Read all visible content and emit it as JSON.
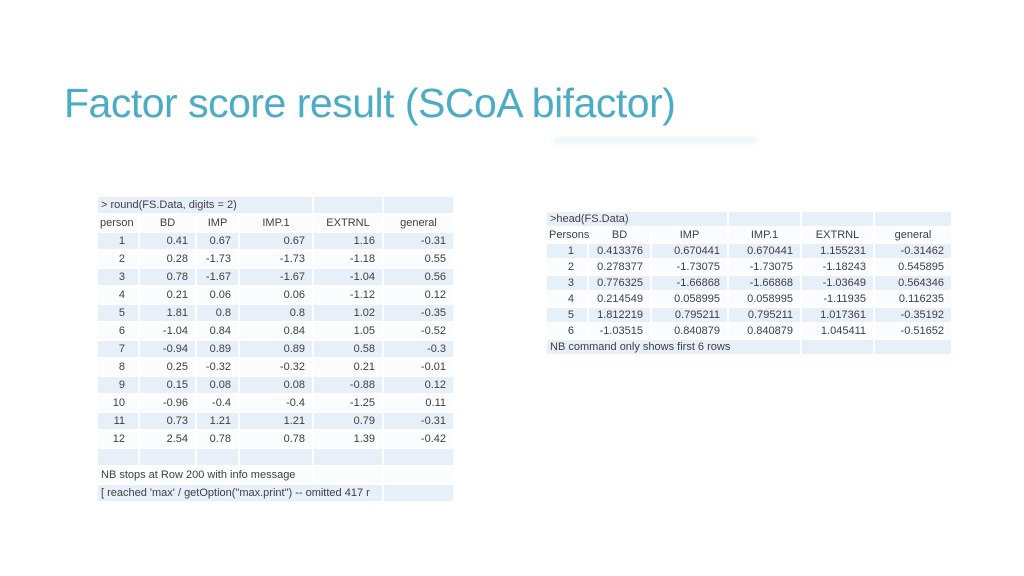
{
  "slide": {
    "title": "Factor score result (SCoA bifactor)",
    "title_color": "#4bacc6",
    "background_color": "#ffffff",
    "table_band_color": "#e7eff8",
    "text_color": "#3f3f3f"
  },
  "left_table": {
    "command": "> round(FS.Data, digits = 2)",
    "headers": [
      "person",
      "BD",
      "IMP",
      "IMP.1",
      "EXTRNL",
      "general"
    ],
    "rows": [
      [
        "1",
        "0.41",
        "0.67",
        "0.67",
        "1.16",
        "-0.31"
      ],
      [
        "2",
        "0.28",
        "-1.73",
        "-1.73",
        "-1.18",
        "0.55"
      ],
      [
        "3",
        "0.78",
        "-1.67",
        "-1.67",
        "-1.04",
        "0.56"
      ],
      [
        "4",
        "0.21",
        "0.06",
        "0.06",
        "-1.12",
        "0.12"
      ],
      [
        "5",
        "1.81",
        "0.8",
        "0.8",
        "1.02",
        "-0.35"
      ],
      [
        "6",
        "-1.04",
        "0.84",
        "0.84",
        "1.05",
        "-0.52"
      ],
      [
        "7",
        "-0.94",
        "0.89",
        "0.89",
        "0.58",
        "-0.3"
      ],
      [
        "8",
        "0.25",
        "-0.32",
        "-0.32",
        "0.21",
        "-0.01"
      ],
      [
        "9",
        "0.15",
        "0.08",
        "0.08",
        "-0.88",
        "0.12"
      ],
      [
        "10",
        "-0.96",
        "-0.4",
        "-0.4",
        "-1.25",
        "0.11"
      ],
      [
        "11",
        "0.73",
        "1.21",
        "1.21",
        "0.79",
        "-0.31"
      ],
      [
        "12",
        "2.54",
        "0.78",
        "0.78",
        "1.39",
        "-0.42"
      ]
    ],
    "notes": [
      "NB stops at Row 200 with info message",
      "[ reached 'max' / getOption(\"max.print\") -- omitted 417 r"
    ]
  },
  "right_table": {
    "command": ">head(FS.Data)",
    "headers": [
      "Persons",
      "BD",
      "IMP",
      "IMP.1",
      "EXTRNL",
      "general"
    ],
    "rows": [
      [
        "1",
        "0.413376",
        "0.670441",
        "0.670441",
        "1.155231",
        "-0.31462"
      ],
      [
        "2",
        "0.278377",
        "-1.73075",
        "-1.73075",
        "-1.18243",
        "0.545895"
      ],
      [
        "3",
        "0.776325",
        "-1.66868",
        "-1.66868",
        "-1.03649",
        "0.564346"
      ],
      [
        "4",
        "0.214549",
        "0.058995",
        "0.058995",
        "-1.11935",
        "0.116235"
      ],
      [
        "5",
        "1.812219",
        "0.795211",
        "0.795211",
        "1.017361",
        "-0.35192"
      ],
      [
        "6",
        "-1.03515",
        "0.840879",
        "0.840879",
        "1.045411",
        "-0.51652"
      ]
    ],
    "notes": [
      "NB command only shows first 6 rows"
    ]
  }
}
